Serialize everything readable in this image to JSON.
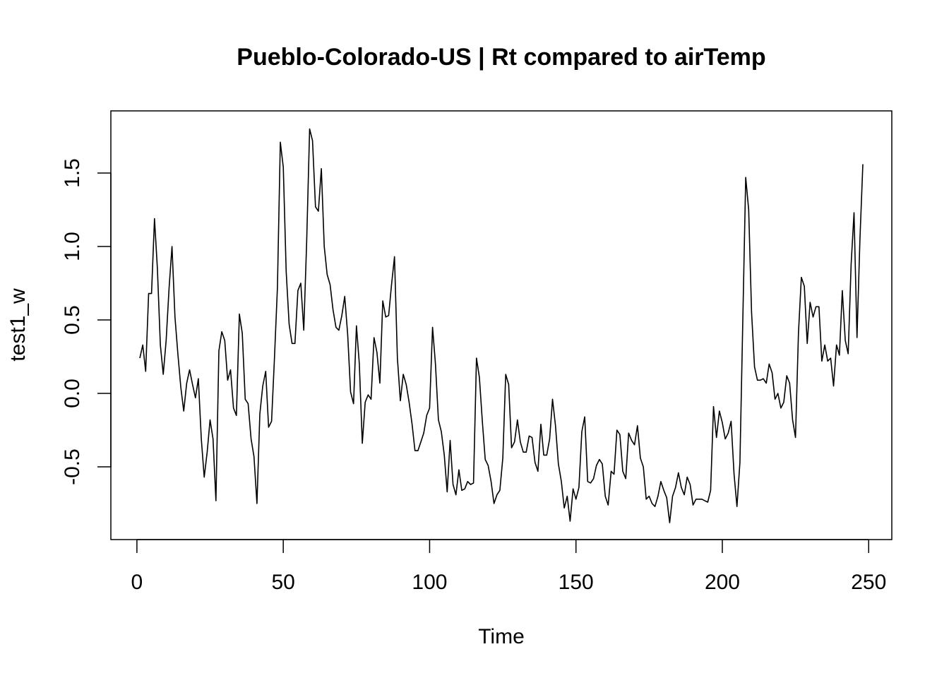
{
  "chart_data": {
    "type": "line",
    "title": "Pueblo-Colorado-US | Rt compared to airTemp",
    "xlabel": "Time",
    "ylabel": "test1_w",
    "xlim": [
      -8.9,
      257.9
    ],
    "ylim": [
      -0.995,
      1.923
    ],
    "grid": false,
    "x_ticks": [
      0,
      50,
      100,
      150,
      200,
      250
    ],
    "x_tick_labels": [
      "0",
      "50",
      "100",
      "150",
      "200",
      "250"
    ],
    "y_ticks": [
      -0.5,
      0.0,
      0.5,
      1.0,
      1.5
    ],
    "y_tick_labels": [
      "-0.5",
      "0.0",
      "0.5",
      "1.0",
      "1.5"
    ],
    "line_color": "#000000",
    "x_start": 1,
    "values": [
      0.24,
      0.33,
      0.15,
      0.68,
      0.68,
      1.19,
      0.85,
      0.33,
      0.13,
      0.36,
      0.72,
      1.0,
      0.52,
      0.27,
      0.04,
      -0.12,
      0.07,
      0.16,
      0.06,
      -0.03,
      0.1,
      -0.31,
      -0.57,
      -0.4,
      -0.18,
      -0.31,
      -0.73,
      0.29,
      0.42,
      0.36,
      0.09,
      0.16,
      -0.1,
      -0.15,
      0.54,
      0.41,
      -0.04,
      -0.07,
      -0.31,
      -0.43,
      -0.75,
      -0.14,
      0.05,
      0.15,
      -0.23,
      -0.19,
      0.24,
      0.72,
      1.71,
      1.54,
      0.83,
      0.47,
      0.34,
      0.34,
      0.7,
      0.75,
      0.43,
      1.03,
      1.8,
      1.72,
      1.27,
      1.24,
      1.53,
      1.0,
      0.81,
      0.74,
      0.57,
      0.45,
      0.43,
      0.53,
      0.66,
      0.4,
      0.01,
      -0.07,
      0.46,
      0.2,
      -0.34,
      -0.06,
      -0.01,
      -0.04,
      0.38,
      0.28,
      0.07,
      0.63,
      0.52,
      0.53,
      0.74,
      0.93,
      0.24,
      -0.05,
      0.13,
      0.06,
      -0.06,
      -0.21,
      -0.39,
      -0.39,
      -0.33,
      -0.27,
      -0.15,
      -0.1,
      0.45,
      0.2,
      -0.18,
      -0.26,
      -0.42,
      -0.67,
      -0.32,
      -0.62,
      -0.69,
      -0.52,
      -0.66,
      -0.65,
      -0.6,
      -0.62,
      -0.61,
      0.24,
      0.11,
      -0.19,
      -0.45,
      -0.49,
      -0.6,
      -0.75,
      -0.69,
      -0.66,
      -0.44,
      0.13,
      0.06,
      -0.37,
      -0.33,
      -0.18,
      -0.33,
      -0.4,
      -0.4,
      -0.29,
      -0.3,
      -0.47,
      -0.53,
      -0.21,
      -0.42,
      -0.42,
      -0.31,
      -0.04,
      -0.22,
      -0.48,
      -0.6,
      -0.78,
      -0.7,
      -0.87,
      -0.65,
      -0.72,
      -0.64,
      -0.26,
      -0.16,
      -0.6,
      -0.61,
      -0.58,
      -0.49,
      -0.45,
      -0.48,
      -0.7,
      -0.76,
      -0.53,
      -0.55,
      -0.25,
      -0.28,
      -0.53,
      -0.58,
      -0.27,
      -0.32,
      -0.35,
      -0.22,
      -0.44,
      -0.5,
      -0.72,
      -0.7,
      -0.75,
      -0.77,
      -0.7,
      -0.6,
      -0.66,
      -0.71,
      -0.88,
      -0.7,
      -0.64,
      -0.54,
      -0.64,
      -0.69,
      -0.57,
      -0.62,
      -0.76,
      -0.72,
      -0.72,
      -0.72,
      -0.73,
      -0.74,
      -0.66,
      -0.09,
      -0.3,
      -0.12,
      -0.2,
      -0.31,
      -0.27,
      -0.19,
      -0.55,
      -0.77,
      -0.47,
      0.5,
      1.47,
      1.25,
      0.55,
      0.18,
      0.09,
      0.09,
      0.1,
      0.07,
      0.2,
      0.14,
      -0.04,
      0.0,
      -0.1,
      -0.06,
      0.12,
      0.07,
      -0.18,
      -0.3,
      0.41,
      0.79,
      0.73,
      0.34,
      0.62,
      0.52,
      0.59,
      0.59,
      0.22,
      0.33,
      0.22,
      0.24,
      0.05,
      0.33,
      0.26,
      0.7,
      0.36,
      0.27,
      0.88,
      1.23,
      0.38,
      1.04,
      1.56
    ]
  }
}
